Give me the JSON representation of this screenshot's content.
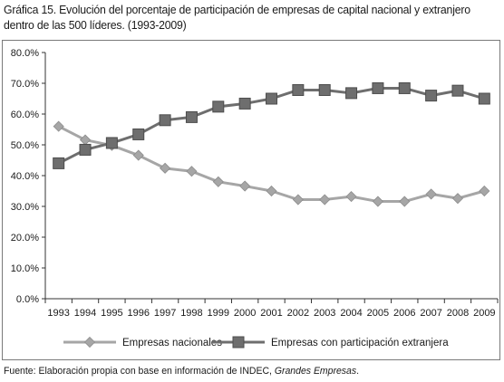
{
  "title": "Gráfica 15. Evolución del porcentaje de participación de empresas de capital nacional y extranjero dentro de las 500 líderes. (1993-2009)",
  "source": {
    "prefix": "Fuente: Elaboración propia con base en información de INDEC, ",
    "italic": "Grandes Empresas",
    "suffix": "."
  },
  "colors": {
    "nacionales": "#a6a6a6",
    "extranjera": "#6e6e6e",
    "axis": "#333333"
  },
  "chart_data": {
    "type": "line",
    "title": "Gráfica 15. Evolución del porcentaje de participación de empresas de capital nacional y extranjero dentro de las 500 líderes. (1993-2009)",
    "xlabel": "",
    "ylabel": "",
    "ylim": [
      0,
      80
    ],
    "grid": false,
    "legend_position": "bottom",
    "y_ticks": [
      "0.0%",
      "10.0%",
      "20.0%",
      "30.0%",
      "40.0%",
      "50.0%",
      "60.0%",
      "70.0%",
      "80.0%"
    ],
    "categories": [
      "1993",
      "1994",
      "1995",
      "1996",
      "1997",
      "1998",
      "1999",
      "2000",
      "2001",
      "2002",
      "2003",
      "2004",
      "2005",
      "2006",
      "2007",
      "2008",
      "2009"
    ],
    "series": [
      {
        "name": "Empresas nacionales",
        "marker": "diamond",
        "values": [
          56.0,
          51.6,
          49.8,
          46.6,
          42.4,
          41.4,
          38.0,
          36.6,
          35.0,
          32.2,
          32.2,
          33.2,
          31.6,
          31.6,
          34.0,
          32.6,
          35.0
        ]
      },
      {
        "name": "Empresas con participación extranjera",
        "marker": "square",
        "values": [
          44.0,
          48.4,
          50.6,
          53.4,
          58.0,
          59.0,
          62.4,
          63.4,
          65.0,
          67.8,
          67.8,
          66.8,
          68.4,
          68.4,
          66.0,
          67.6,
          65.0
        ]
      }
    ]
  }
}
